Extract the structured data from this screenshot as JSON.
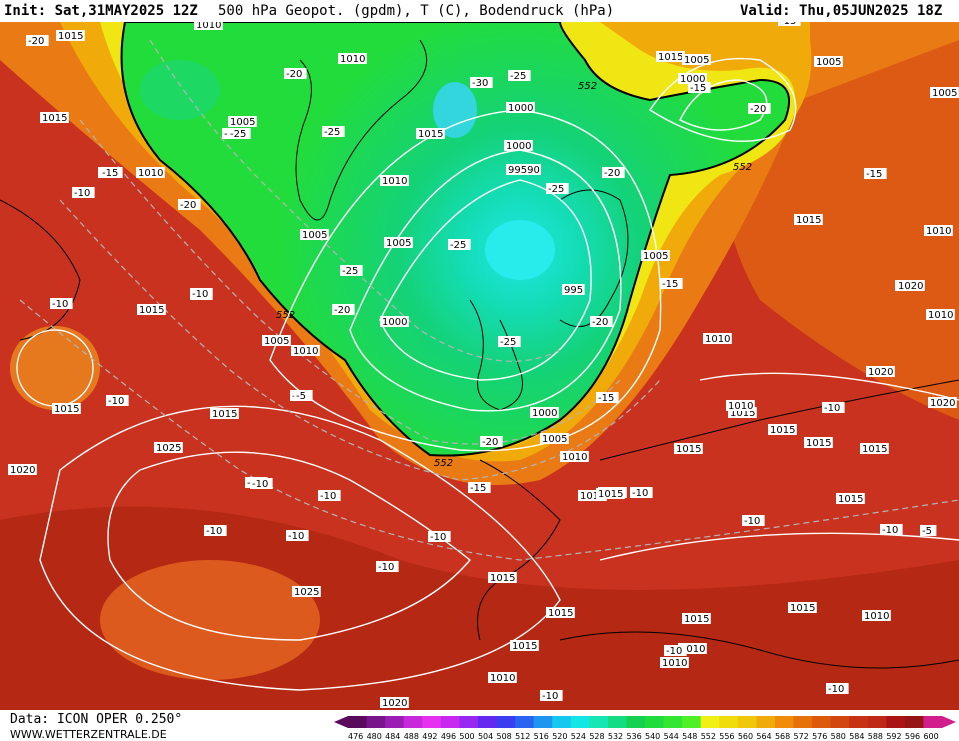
{
  "header": {
    "init": "Init: Sat,31MAY2025 12Z",
    "title": "500 hPa Geopot. (gpdm), T (C), Bodendruck (hPa)",
    "valid": "Valid: Thu,05JUN2025 18Z"
  },
  "footer": {
    "source": "Data: ICON OPER 0.250°",
    "site": "WWW.WETTERZENTRALE.DE"
  },
  "legend": {
    "values": [
      "476",
      "480",
      "484",
      "488",
      "492",
      "496",
      "500",
      "504",
      "508",
      "512",
      "516",
      "520",
      "524",
      "528",
      "532",
      "536",
      "540",
      "544",
      "548",
      "552",
      "556",
      "560",
      "564",
      "568",
      "572",
      "576",
      "580",
      "584",
      "588",
      "592",
      "596",
      "600"
    ],
    "colors": [
      "#5a0a5a",
      "#78148c",
      "#9a1eb4",
      "#c828dc",
      "#e632f0",
      "#c828f0",
      "#9628f0",
      "#6428f0",
      "#3c3cf0",
      "#2864f0",
      "#1e96f0",
      "#14c8f0",
      "#14e6e6",
      "#14e6b4",
      "#14dc82",
      "#14d250",
      "#1edc3c",
      "#32e632",
      "#50f028",
      "#f0f014",
      "#f0dc0a",
      "#f0c80a",
      "#f0aa0a",
      "#f08c0a",
      "#e6700a",
      "#dc5a0a",
      "#d2460f",
      "#c83214",
      "#be2814",
      "#aa1414",
      "#961414",
      "#d21e8c"
    ]
  },
  "contours": {
    "geopotential_label": "552",
    "pressure_labels": [
      "1010",
      "1015",
      "1010",
      "1005",
      "1000",
      "1015",
      "1005",
      "1010",
      "1015",
      "1010",
      "1005",
      "1015",
      "1010",
      "1005",
      "1000",
      "995",
      "99590",
      "1000",
      "1005",
      "1010",
      "1015",
      "1020",
      "1025",
      "1020",
      "1015",
      "1005",
      "1000",
      "1005",
      "1015",
      "1010",
      "1015",
      "1020",
      "1015",
      "1010",
      "1015",
      "1015",
      "1015",
      "1015",
      "1015",
      "1010",
      "1020",
      "1025",
      "1015",
      "1010",
      "1000",
      "1005",
      "1005",
      "1010",
      "1020",
      "1015",
      "1015",
      "1010",
      "1010",
      "1015",
      "1020",
      "1010",
      "1015",
      "1015",
      "1010",
      "1015"
    ],
    "temperature_labels": [
      "-20",
      "-15",
      "-10",
      "-10",
      "-10",
      "-10",
      "-20",
      "-25",
      "-25",
      "-30",
      "-25",
      "-25",
      "-20",
      "-25",
      "-25",
      "-20",
      "-15",
      "-15",
      "-10",
      "-10",
      "-10",
      "-10",
      "-10",
      "-10",
      "-10",
      "-15",
      "-15",
      "-15",
      "-20",
      "-20",
      "-20",
      "-25",
      "-15",
      "-10",
      "-10",
      "-10",
      "-10",
      "-10",
      "-10",
      "-10",
      "-5",
      "-5",
      "-10",
      "-10",
      "-15",
      "-25",
      "-20"
    ]
  }
}
